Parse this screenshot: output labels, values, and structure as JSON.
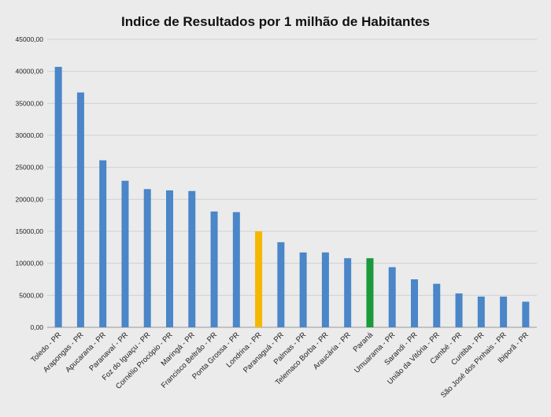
{
  "chart_data": {
    "type": "bar",
    "title": "Indice de Resultados por 1 milhão de Habitantes",
    "categories": [
      "Toledo - PR",
      "Arapongas - PR",
      "Apucarana - PR",
      "Paranavaí - PR",
      "Foz do Iguaçu - PR",
      "Cornélio Procópio - PR",
      "Maringá - PR",
      "Francisco Beltrão - PR",
      "Ponta Grossa - PR",
      "Londrina - PR",
      "Paranaguá - PR",
      "Palmas - PR",
      "Telemaco Borba - PR",
      "Araucária - PR",
      "Paraná",
      "Umuarama - PR",
      "Sarandi - PR",
      "União da Vitória - PR",
      "Cambé - PR",
      "Curitiba - PR",
      "São José dos Pinhais - PR",
      "Ibiporã - PR"
    ],
    "values": [
      40700,
      36700,
      26100,
      22900,
      21600,
      21400,
      21300,
      18100,
      18000,
      15000,
      13300,
      11700,
      11700,
      10800,
      10800,
      9400,
      7500,
      6800,
      5300,
      4800,
      4800,
      4000
    ],
    "colors": [
      "#4a86c8",
      "#4a86c8",
      "#4a86c8",
      "#4a86c8",
      "#4a86c8",
      "#4a86c8",
      "#4a86c8",
      "#4a86c8",
      "#4a86c8",
      "#f5b800",
      "#4a86c8",
      "#4a86c8",
      "#4a86c8",
      "#4a86c8",
      "#1a9a3a",
      "#4a86c8",
      "#4a86c8",
      "#4a86c8",
      "#4a86c8",
      "#4a86c8",
      "#4a86c8",
      "#4a86c8"
    ],
    "ylim": [
      0,
      45000
    ],
    "yticks": [
      "0,00",
      "5000,00",
      "10000,00",
      "15000,00",
      "20000,00",
      "25000,00",
      "30000,00",
      "35000,00",
      "40000,00",
      "45000,00"
    ],
    "xlabel": "",
    "ylabel": "",
    "grid": true,
    "gridColor": "#d0d0d0",
    "axisColor": "#999999"
  }
}
